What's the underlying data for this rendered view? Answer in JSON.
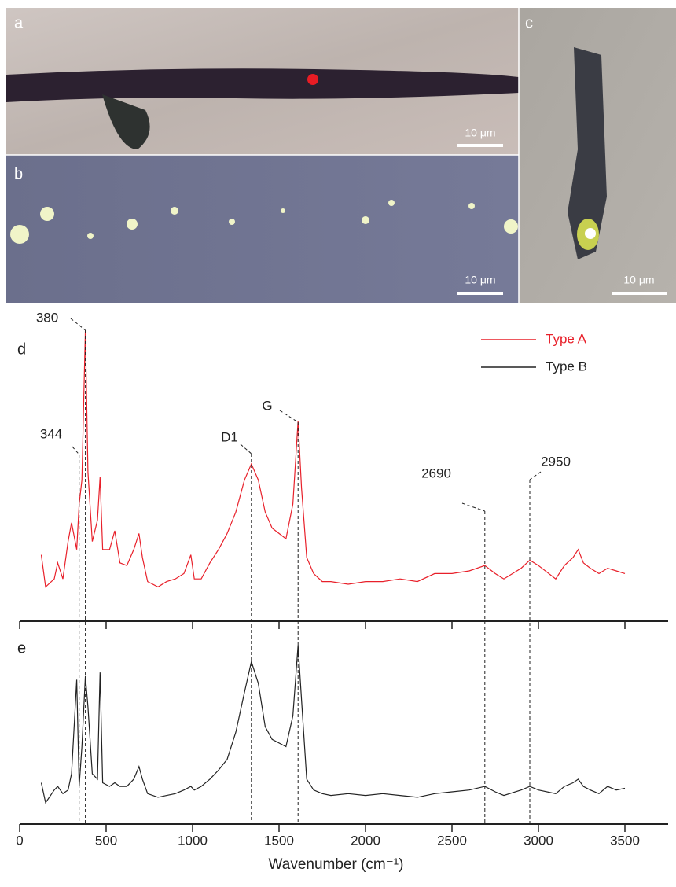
{
  "figure_panels": [
    {
      "label": "a",
      "scale_bar": "10 μm"
    },
    {
      "label": "b",
      "scale_bar": "10 μm"
    },
    {
      "label": "c",
      "scale_bar": "10 μm"
    }
  ],
  "chart_data": [
    {
      "type": "line",
      "label": "d",
      "x": [
        125,
        150,
        200,
        220,
        250,
        280,
        300,
        330,
        344,
        360,
        380,
        395,
        420,
        450,
        465,
        480,
        520,
        550,
        580,
        620,
        660,
        690,
        710,
        740,
        800,
        850,
        900,
        950,
        990,
        1010,
        1050,
        1100,
        1150,
        1200,
        1250,
        1300,
        1340,
        1380,
        1420,
        1460,
        1500,
        1540,
        1580,
        1610,
        1630,
        1660,
        1700,
        1750,
        1800,
        1900,
        2000,
        2100,
        2200,
        2300,
        2400,
        2500,
        2600,
        2690,
        2750,
        2800,
        2900,
        2950,
        3000,
        3100,
        3150,
        3200,
        3230,
        3260,
        3300,
        3350,
        3400,
        3450,
        3500
      ],
      "series": [
        {
          "name": "Type A",
          "color": "#e8202a",
          "values": [
            16,
            4,
            7,
            13,
            7,
            21,
            28,
            18,
            35,
            44,
            100,
            47,
            21,
            29,
            45,
            18,
            18,
            25,
            13,
            12,
            18,
            24,
            15,
            6,
            4,
            6,
            7,
            9,
            16,
            7,
            7,
            13,
            18,
            24,
            32,
            44,
            50,
            44,
            32,
            26,
            24,
            22,
            35,
            66,
            41,
            15,
            9,
            6,
            6,
            5,
            6,
            6,
            7,
            6,
            9,
            9,
            10,
            12,
            9,
            7,
            11,
            14,
            12,
            7,
            12,
            15,
            18,
            13,
            11,
            9,
            11,
            10,
            9
          ]
        }
      ],
      "xlim": [
        0,
        3750
      ],
      "xticks": [
        0,
        500,
        1000,
        1500,
        2000,
        2500,
        3000,
        3500
      ],
      "ylim": [
        0,
        100
      ],
      "annotations": [
        {
          "text": "380",
          "x": 380
        },
        {
          "text": "344",
          "x": 344
        },
        {
          "text": "D1",
          "x": 1340
        },
        {
          "text": "G",
          "x": 1610
        },
        {
          "text": "2690",
          "x": 2690
        },
        {
          "text": "2950",
          "x": 2950
        }
      ]
    },
    {
      "type": "line",
      "label": "e",
      "x": [
        125,
        150,
        200,
        220,
        250,
        280,
        300,
        330,
        344,
        360,
        380,
        395,
        420,
        450,
        465,
        480,
        520,
        550,
        580,
        620,
        660,
        690,
        710,
        740,
        800,
        850,
        900,
        950,
        990,
        1010,
        1050,
        1100,
        1150,
        1200,
        1250,
        1300,
        1340,
        1380,
        1420,
        1460,
        1500,
        1540,
        1580,
        1610,
        1630,
        1660,
        1700,
        1750,
        1800,
        1900,
        2000,
        2100,
        2200,
        2300,
        2400,
        2500,
        2600,
        2690,
        2750,
        2800,
        2900,
        2950,
        3000,
        3100,
        3150,
        3200,
        3230,
        3260,
        3300,
        3350,
        3400,
        3450,
        3500
      ],
      "series": [
        {
          "name": "Type B",
          "color": "#222222",
          "values": [
            15,
            4,
            11,
            13,
            9,
            11,
            20,
            72,
            13,
            35,
            74,
            57,
            20,
            17,
            76,
            15,
            13,
            15,
            13,
            13,
            17,
            24,
            17,
            9,
            7,
            8,
            9,
            11,
            13,
            11,
            13,
            17,
            22,
            28,
            43,
            65,
            82,
            70,
            46,
            39,
            37,
            35,
            52,
            91,
            61,
            17,
            11,
            9,
            8,
            9,
            8,
            9,
            8,
            7,
            9,
            10,
            11,
            13,
            10,
            8,
            11,
            13,
            11,
            9,
            13,
            15,
            17,
            13,
            11,
            9,
            13,
            11,
            12
          ]
        }
      ],
      "xlim": [
        0,
        3750
      ],
      "xticks": [
        0,
        500,
        1000,
        1500,
        2000,
        2500,
        3000,
        3500
      ],
      "ylim": [
        0,
        100
      ],
      "x_label": "Wavenumber (cm⁻¹)"
    }
  ]
}
